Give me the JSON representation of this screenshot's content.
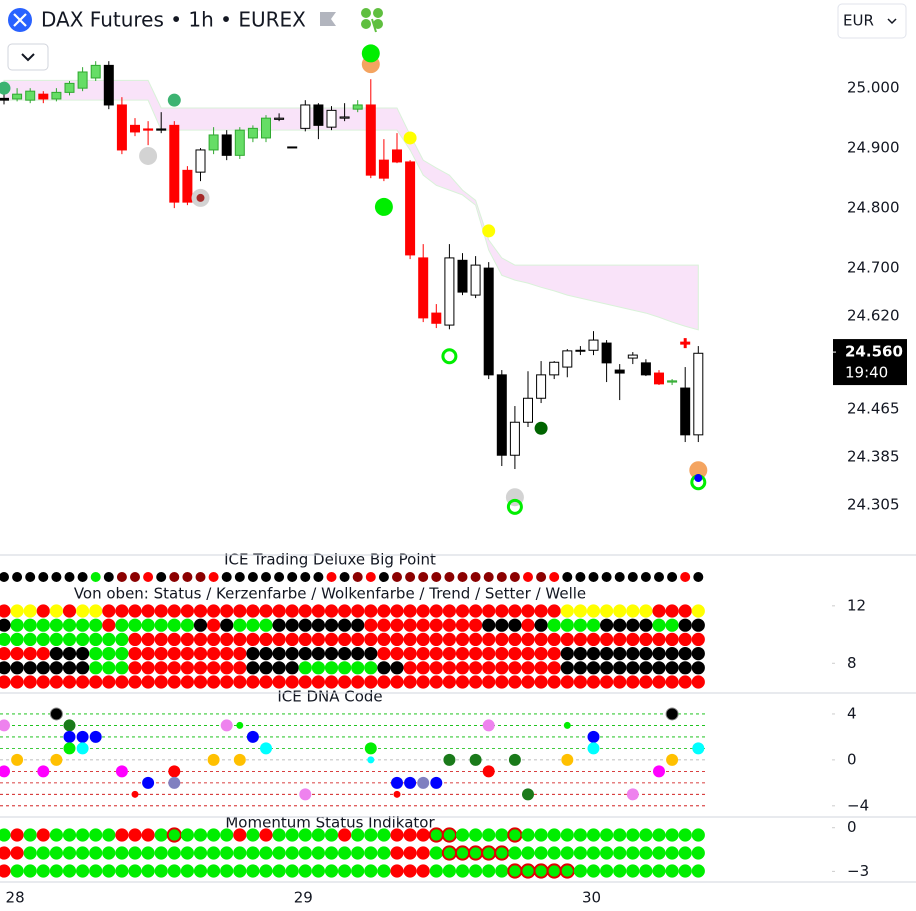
{
  "header": {
    "title": "DAX Futures • 1h • EUREX",
    "currency": "EUR"
  },
  "x_axis": {
    "labels": [
      "28",
      "29",
      "30"
    ]
  },
  "chart_data": [
    {
      "type": "candlestick",
      "ylim": [
        24230,
        25147
      ],
      "yticks": [
        {
          "value": 25000,
          "label": "25.000"
        },
        {
          "value": 24900,
          "label": "24.900"
        },
        {
          "value": 24800,
          "label": "24.800"
        },
        {
          "value": 24700,
          "label": "24.700"
        },
        {
          "value": 24620,
          "label": "24.620"
        },
        {
          "value": 24465,
          "label": "24.465"
        },
        {
          "value": 24385,
          "label": "24.385"
        },
        {
          "value": 24305,
          "label": "24.305"
        }
      ],
      "last_price": {
        "value": 24560,
        "label": "24.560"
      },
      "countdown": "19:40",
      "open": [
        24983,
        24982,
        24980,
        24990,
        24982,
        24993,
        25000,
        25017,
        25038,
        24972,
        24938,
        24932,
        24932,
        24938,
        24863,
        24860,
        24897,
        24922,
        24888,
        24917,
        24917,
        24950,
        24902,
        24933,
        24972,
        24935,
        24950,
        24965,
        24972,
        24880,
        24897,
        24877,
        24717,
        24625,
        24605,
        24713,
        24655,
        24700,
        24522,
        24388,
        24443,
        24483,
        24522,
        24535,
        24562,
        24563,
        24575,
        24530,
        24550,
        24542,
        24525,
        24510,
        24500,
        24422
      ],
      "high": [
        24993,
        25000,
        25000,
        24995,
        25000,
        25012,
        25035,
        25045,
        25045,
        24985,
        24950,
        24945,
        24960,
        24945,
        24870,
        24900,
        24935,
        24930,
        24935,
        24938,
        24955,
        24958,
        24902,
        24980,
        24975,
        24970,
        24975,
        24980,
        25015,
        24915,
        24925,
        24880,
        24740,
        24640,
        24740,
        24725,
        24720,
        24710,
        24530,
        24470,
        24528,
        24545,
        24545,
        24565,
        24570,
        24595,
        24580,
        24540,
        24560,
        24548,
        24530,
        24515,
        24535,
        24570
      ],
      "low": [
        24973,
        24978,
        24975,
        24975,
        24978,
        24988,
        24995,
        25012,
        24965,
        24890,
        24920,
        24905,
        24925,
        24800,
        24805,
        24845,
        24890,
        24880,
        24882,
        24910,
        24910,
        24945,
        24902,
        24928,
        24915,
        24930,
        24945,
        24960,
        24850,
        24845,
        24875,
        24715,
        24610,
        24600,
        24598,
        24655,
        24650,
        24515,
        24370,
        24365,
        24435,
        24475,
        24515,
        24518,
        24555,
        24555,
        24510,
        24480,
        24540,
        24520,
        24505,
        24505,
        24410,
        24410
      ],
      "close": [
        24980,
        24990,
        24995,
        24982,
        24993,
        25008,
        25027,
        25038,
        24972,
        24897,
        24927,
        24930,
        24930,
        24810,
        24810,
        24897,
        24922,
        24888,
        24930,
        24933,
        24950,
        24948,
        24902,
        24972,
        24938,
        24963,
        24952,
        24972,
        24855,
        24850,
        24877,
        24722,
        24617,
        24608,
        24717,
        24660,
        24705,
        24522,
        24388,
        24443,
        24483,
        24522,
        24543,
        24562,
        24563,
        24580,
        24542,
        24525,
        24555,
        24522,
        24507,
        24512,
        24422,
        24558
      ],
      "candle_colors": "KGGRGGGGKRRRKRRWGKGGGWKWKWWGRRRRRRWKWKKWWWWWWWKKWKRGKW",
      "candle_palette": {
        "K": "#000000",
        "R": "#ff0000",
        "G": "#66dd66",
        "W": "#ffffff"
      },
      "cloud": {
        "color": "#f9e3f9",
        "upper": [
          25013,
          25013,
          25013,
          25013,
          25013,
          25013,
          25013,
          25013,
          25013,
          25013,
          25013,
          25013,
          24967,
          24967,
          24967,
          24967,
          24967,
          24967,
          24967,
          24967,
          24967,
          24967,
          24967,
          24967,
          24967,
          24967,
          24967,
          24967,
          24967,
          24967,
          24967,
          24922,
          24880,
          24867,
          24855,
          24830,
          24813,
          24747,
          24717,
          24705,
          24705,
          24705,
          24705,
          24705,
          24705,
          24705,
          24705,
          24705,
          24705,
          24705,
          24705,
          24705,
          24705,
          24705
        ],
        "lower": [
          24980,
          24980,
          24980,
          24980,
          24980,
          24980,
          24980,
          24980,
          24980,
          24980,
          24980,
          24980,
          24930,
          24930,
          24930,
          24930,
          24930,
          24930,
          24930,
          24930,
          24930,
          24930,
          24930,
          24930,
          24930,
          24930,
          24930,
          24930,
          24930,
          24930,
          24930,
          24897,
          24855,
          24838,
          24830,
          24822,
          24805,
          24730,
          24688,
          24680,
          24675,
          24668,
          24662,
          24655,
          24650,
          24645,
          24640,
          24635,
          24630,
          24625,
          24618,
          24610,
          24603,
          24597
        ]
      },
      "markers": [
        {
          "x": 0,
          "value": 25000,
          "color": "#3cb371",
          "shape": "dot",
          "size": "mid"
        },
        {
          "x": 13,
          "value": 24980,
          "color": "#3cb371",
          "shape": "dot",
          "size": "mid"
        },
        {
          "x": 11,
          "value": 24887,
          "color": "#d3d3d3",
          "shape": "dot",
          "size": "big"
        },
        {
          "x": 15,
          "value": 24817,
          "color": "#d3d3d3",
          "shape": "dot",
          "size": "big"
        },
        {
          "x": 15,
          "value": 24817,
          "color": "#a52a2a",
          "shape": "dot",
          "size": "small"
        },
        {
          "x": 28,
          "value": 25040,
          "color": "#f4a460",
          "shape": "dot",
          "size": "big"
        },
        {
          "x": 28,
          "value": 25058,
          "color": "#00ee00",
          "shape": "dot",
          "size": "big"
        },
        {
          "x": 29,
          "value": 24802,
          "color": "#00ee00",
          "shape": "dot",
          "size": "big"
        },
        {
          "x": 31,
          "value": 24917,
          "color": "#ffff00",
          "shape": "dot",
          "size": "mid"
        },
        {
          "x": 37,
          "value": 24762,
          "color": "#ffff00",
          "shape": "dot",
          "size": "mid"
        },
        {
          "x": 34,
          "value": 24553,
          "color": "#00ee00",
          "shape": "ring",
          "size": "mid"
        },
        {
          "x": 39,
          "value": 24318,
          "color": "#d3d3d3",
          "shape": "dot",
          "size": "big"
        },
        {
          "x": 39,
          "value": 24302,
          "color": "#00ee00",
          "shape": "ring",
          "size": "mid"
        },
        {
          "x": 41,
          "value": 24433,
          "color": "#006400",
          "shape": "dot",
          "size": "mid"
        },
        {
          "x": 53,
          "value": 24363,
          "color": "#f4a460",
          "shape": "dot",
          "size": "big"
        },
        {
          "x": 53,
          "value": 24343,
          "color": "#00ee00",
          "shape": "ring",
          "size": "mid"
        },
        {
          "x": 53,
          "value": 24350,
          "color": "#0000ff",
          "shape": "dot",
          "size": "small"
        },
        {
          "x": 52,
          "value": 24575,
          "color": "#ff0000",
          "shape": "cross",
          "size": "mid"
        }
      ]
    },
    {
      "type": "dot-matrix",
      "title": "ICE Trading Deluxe Big Point",
      "subtitle": "Von oben: Status / Kerzenfarbe / Wolkenfarbe / Trend / Setter / Welle",
      "ylim": [
        6,
        15.4
      ],
      "yticks": [
        12,
        8
      ],
      "palette": {
        "K": "#000000",
        "R": "#ff0000",
        "G": "#00ee00",
        "D": "#8b0000",
        "Y": "#ffff00"
      },
      "top_row": "KKKKKKKGKDDRKDDDRKKKKKKKKRKDRKDDDDDDDDDDRDRKKKKKKKKKRK",
      "rows": [
        "RYYRYRYYRRRRRRRRRRRRRRRRRRRRRRRRRRRRRRRRRRRYYYYYYYRRRY",
        "KGGGGGGGRGGGGGGKRKGGGKKKKKKKRRRRRRRRRKKKRKGGGGKKKKGGKK",
        "GGGGGGGGGGRRRRRRRRRRRRRRRRRRRRRRRRRRRRRRRRRRRRRRRRRRRR",
        "RRRRKKKGGGRRRRRRRRRKKKKKKKKKKRRRRRRRRRRRRRRKKKKKKKKKKK",
        "KKKKKKKGGGRRRRRRRRRKKKKGGGGGGKKRRRRRRRRRRRRKKKKKKKKKKK",
        "RRRRRRRRRRRRRRRRRRRRRRRRRRRRRRRRRRRRRRRRRRRRRRRRRRRRRR"
      ]
    },
    {
      "type": "scatter",
      "title": "ICE DNA Code",
      "ylim": [
        -4.8,
        5.65
      ],
      "yticks": [
        4,
        0,
        {
          "value": -4,
          "label": "−4"
        }
      ],
      "hlines": [
        {
          "value": 4,
          "color": "#00bb00"
        },
        {
          "value": 3,
          "color": "#00bb00"
        },
        {
          "value": 2,
          "color": "#00bb00"
        },
        {
          "value": 1,
          "color": "#00bb00"
        },
        {
          "value": 0,
          "color": "#aaaaaa"
        },
        {
          "value": -1,
          "color": "#cc0000"
        },
        {
          "value": -2,
          "color": "#cc0000"
        },
        {
          "value": -3,
          "color": "#cc0000"
        },
        {
          "value": -4,
          "color": "#cc0000"
        }
      ],
      "points": [
        {
          "x": 0,
          "value": 3,
          "color": "#ee82ee"
        },
        {
          "x": 0,
          "value": -1,
          "color": "#ff00ff"
        },
        {
          "x": 1,
          "value": 0,
          "color": "#ffc000"
        },
        {
          "x": 3,
          "value": -1,
          "color": "#ff00ff"
        },
        {
          "x": 4,
          "value": 0,
          "color": "#ffc000"
        },
        {
          "x": 4,
          "value": 4,
          "color": "#000000"
        },
        {
          "x": 5,
          "value": 3,
          "color": "#1a7a1a"
        },
        {
          "x": 5,
          "value": 2,
          "color": "#0000ff"
        },
        {
          "x": 5,
          "value": 1,
          "color": "#00ee00"
        },
        {
          "x": 6,
          "value": 2,
          "color": "#0000ff"
        },
        {
          "x": 6,
          "value": 1,
          "color": "#00ffff"
        },
        {
          "x": 7,
          "value": 2,
          "color": "#0000ff"
        },
        {
          "x": 9,
          "value": -1,
          "color": "#ff00ff"
        },
        {
          "x": 10,
          "value": -3,
          "color": "#ff0000",
          "size": "small"
        },
        {
          "x": 11,
          "value": -2,
          "color": "#0000ff"
        },
        {
          "x": 13,
          "value": -1,
          "color": "#ff0000"
        },
        {
          "x": 13,
          "value": -2,
          "color": "#8080c0"
        },
        {
          "x": 16,
          "value": 0,
          "color": "#ffc000"
        },
        {
          "x": 17,
          "value": 3,
          "color": "#ee82ee"
        },
        {
          "x": 18,
          "value": 3,
          "color": "#00ee00",
          "size": "small"
        },
        {
          "x": 18,
          "value": 0,
          "color": "#ffc000"
        },
        {
          "x": 19,
          "value": 2,
          "color": "#0000ff"
        },
        {
          "x": 20,
          "value": 1,
          "color": "#00ffff"
        },
        {
          "x": 23,
          "value": -3,
          "color": "#ee82ee"
        },
        {
          "x": 28,
          "value": 1,
          "color": "#00ee00"
        },
        {
          "x": 28,
          "value": 0,
          "color": "#00ffff",
          "size": "small"
        },
        {
          "x": 30,
          "value": -2,
          "color": "#0000ff"
        },
        {
          "x": 30,
          "value": -3,
          "color": "#ff0000",
          "size": "small"
        },
        {
          "x": 31,
          "value": -2,
          "color": "#0000ff"
        },
        {
          "x": 32,
          "value": -2,
          "color": "#8080c0"
        },
        {
          "x": 33,
          "value": -2,
          "color": "#0000ff"
        },
        {
          "x": 34,
          "value": 0,
          "color": "#1a7a1a"
        },
        {
          "x": 36,
          "value": 0,
          "color": "#1a7a1a"
        },
        {
          "x": 37,
          "value": 3,
          "color": "#ee82ee"
        },
        {
          "x": 37,
          "value": -1,
          "color": "#ff0000"
        },
        {
          "x": 39,
          "value": 0,
          "color": "#1a7a1a"
        },
        {
          "x": 40,
          "value": -3,
          "color": "#1a7a1a"
        },
        {
          "x": 43,
          "value": 0,
          "color": "#ffc000"
        },
        {
          "x": 43,
          "value": 3,
          "color": "#00ee00",
          "size": "small"
        },
        {
          "x": 45,
          "value": 2,
          "color": "#0000ff"
        },
        {
          "x": 45,
          "value": 1,
          "color": "#00ffff"
        },
        {
          "x": 48,
          "value": -3,
          "color": "#ee82ee"
        },
        {
          "x": 50,
          "value": -1,
          "color": "#ff00ff"
        },
        {
          "x": 51,
          "value": 0,
          "color": "#ffc000"
        },
        {
          "x": 51,
          "value": 4,
          "color": "#000000"
        },
        {
          "x": 53,
          "value": 1,
          "color": "#00ffff"
        }
      ]
    },
    {
      "type": "dot-matrix",
      "title": "Momentum Status Indikator",
      "ylim": [
        -3.73,
        0.53
      ],
      "yticks": [
        0,
        {
          "value": -3,
          "label": "−3"
        }
      ],
      "palette": {
        "R": "#ff0000",
        "G": "#00ee00",
        "O": "#00ee00"
      },
      "ring_color": "#e00000",
      "rows": [
        "GRGRGGGGGRRRGOGGGGRGRGGGGGRGGGRRROOGGGGOGGGGGGGGGGGGGG",
        "RRGGGGGGGGGGGGGGGGGGGGGGGGGGGGRRRGOOOOOGGGGGGGGGGGGGGG",
        "RGGGGGGGGGGGGGGGGGGGGGGGGGGGGGRRRGGGGGGOOOOOGGGGGGGGGG"
      ]
    }
  ]
}
